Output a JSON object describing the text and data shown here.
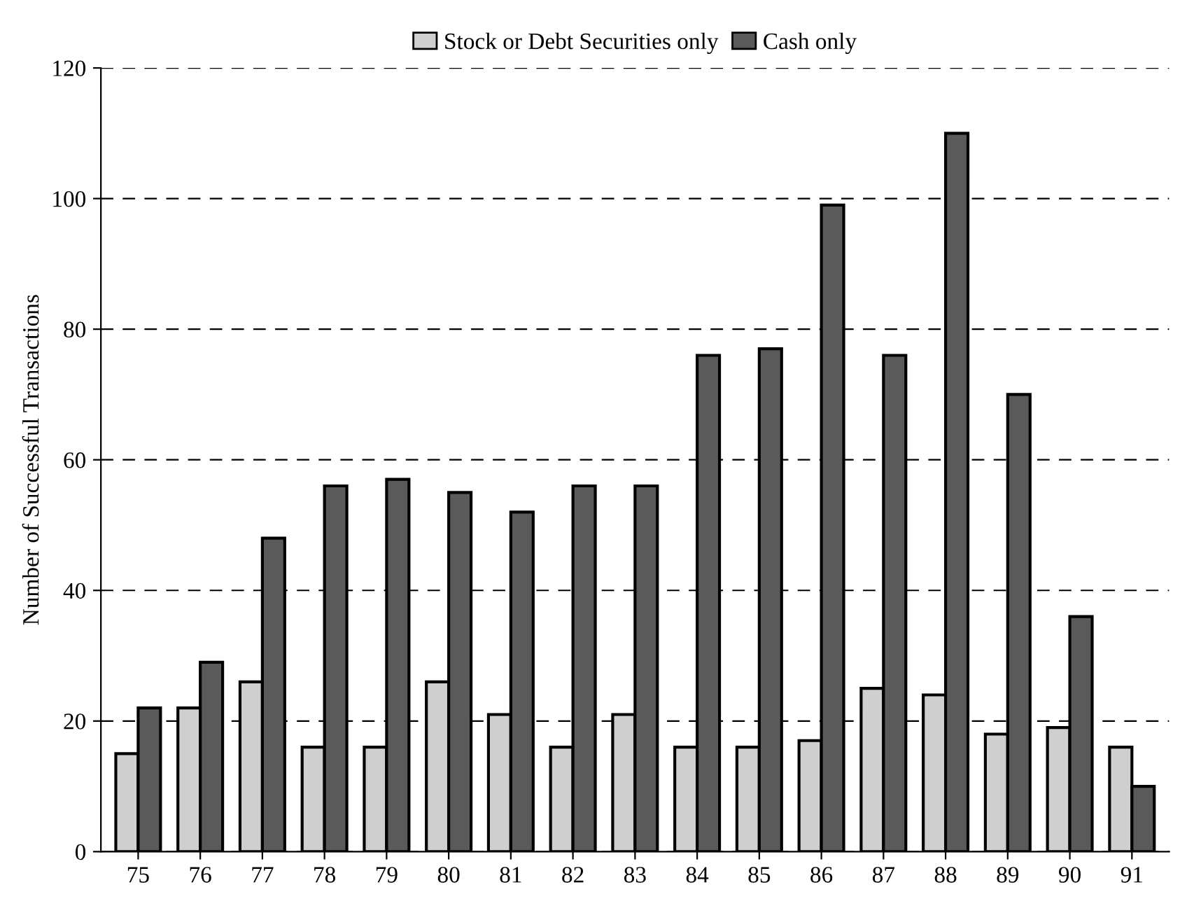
{
  "chart_data": {
    "type": "bar",
    "ylabel": "Number of Successful Transactions",
    "categories": [
      "75",
      "76",
      "77",
      "78",
      "79",
      "80",
      "81",
      "82",
      "83",
      "84",
      "85",
      "86",
      "87",
      "88",
      "89",
      "90",
      "91"
    ],
    "series": [
      {
        "name": "Stock or Debt Securities only",
        "color": "#cfcfcf",
        "values": [
          15,
          22,
          26,
          16,
          16,
          26,
          21,
          16,
          21,
          16,
          16,
          17,
          25,
          24,
          18,
          19,
          16
        ]
      },
      {
        "name": "Cash only",
        "color": "#5a5a5a",
        "values": [
          22,
          29,
          48,
          56,
          57,
          55,
          52,
          56,
          56,
          76,
          77,
          99,
          76,
          110,
          70,
          36,
          10
        ]
      }
    ],
    "ylim": [
      0,
      120
    ],
    "yticks": [
      0,
      20,
      40,
      60,
      80,
      100,
      120
    ],
    "grid": "y",
    "legend": "top",
    "line_style": "dashed"
  }
}
